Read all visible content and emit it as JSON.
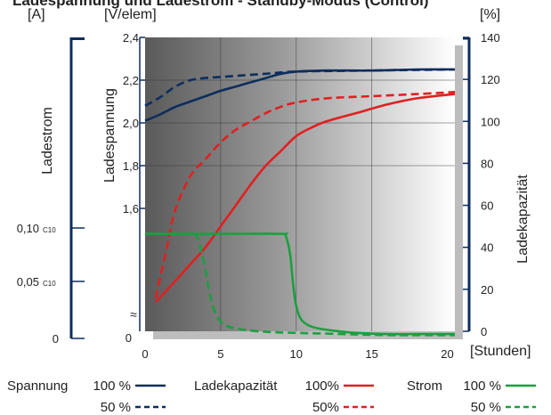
{
  "chart_data": {
    "type": "line",
    "title": "Ladespannung und Ladestrom - Standby-Modus (Control)",
    "xlabel": "[Stunden]",
    "x_ticks": [
      "0",
      "5",
      "10",
      "15",
      "20"
    ],
    "xlim": [
      0,
      20.5
    ],
    "left_axis_1": {
      "label": "Ladestrom",
      "unit": "[A]",
      "ticks": [
        {
          "value": 0,
          "text": "0",
          "sub": ""
        },
        {
          "value": 0.05,
          "text": "0,05",
          "sub": "C10"
        },
        {
          "value": 0.1,
          "text": "0,10",
          "sub": "C10"
        }
      ]
    },
    "left_axis_2": {
      "label": "Ladespannung",
      "unit": "[V/elem]",
      "ticks": [
        "1,6",
        "1,8",
        "2,0",
        "2,2",
        "2,4"
      ],
      "zero_label": "0",
      "break_symbol": "≈",
      "ylim": [
        1.6,
        2.4
      ]
    },
    "right_axis": {
      "label": "Ladekapazität",
      "unit": "[%]",
      "ticks": [
        "0",
        "20",
        "40",
        "60",
        "80",
        "100",
        "120",
        "140"
      ],
      "ylim": [
        0,
        140
      ]
    },
    "grid": true,
    "series": [
      {
        "name": "Spannung 100 %",
        "axis": "voltage",
        "color": "#0d2d5e",
        "dash": false,
        "x": [
          0,
          1,
          2,
          3,
          4,
          5,
          6,
          7,
          8,
          9,
          10,
          12,
          15,
          18,
          20.5
        ],
        "y": [
          2.01,
          2.04,
          2.075,
          2.1,
          2.125,
          2.15,
          2.17,
          2.19,
          2.21,
          2.23,
          2.24,
          2.245,
          2.245,
          2.25,
          2.25
        ]
      },
      {
        "name": "Spannung 50 %",
        "axis": "voltage",
        "color": "#0d2d5e",
        "dash": true,
        "x": [
          0,
          1,
          2,
          3,
          4,
          5,
          6,
          8,
          10,
          15,
          20.5
        ],
        "y": [
          2.08,
          2.12,
          2.17,
          2.2,
          2.21,
          2.215,
          2.22,
          2.23,
          2.24,
          2.245,
          2.25
        ]
      },
      {
        "name": "Ladekapazität 100%",
        "axis": "capacity",
        "color": "#e02020",
        "dash": false,
        "x": [
          0.7,
          2,
          3,
          4,
          5,
          6,
          7,
          8,
          9,
          10,
          11,
          12,
          14,
          16,
          18,
          20.5
        ],
        "y": [
          14,
          24,
          32,
          40,
          50,
          60,
          70,
          79,
          86,
          93,
          97,
          100,
          104,
          108,
          111,
          113
        ]
      },
      {
        "name": "Ladekapazität 50%",
        "axis": "capacity",
        "color": "#e02020",
        "dash": true,
        "x": [
          0.7,
          1.5,
          2,
          3,
          4,
          5,
          6,
          7,
          8,
          9,
          10,
          12,
          15,
          18,
          20.5
        ],
        "y": [
          16,
          42,
          58,
          74,
          82,
          90,
          96,
          100,
          104,
          107,
          109,
          111,
          112,
          113,
          114
        ]
      },
      {
        "name": "Strom 100 %",
        "axis": "current",
        "color": "#1aa040",
        "dash": false,
        "x": [
          0,
          5,
          9,
          9.3,
          9.6,
          9.8,
          10,
          10.3,
          10.8,
          11.5,
          12.5,
          14,
          16,
          18,
          20.5
        ],
        "y": [
          0.102,
          0.102,
          0.102,
          0.1,
          0.08,
          0.05,
          0.03,
          0.018,
          0.012,
          0.009,
          0.007,
          0.005,
          0.004,
          0.004,
          0.004
        ]
      },
      {
        "name": "Strom 50 %",
        "axis": "current",
        "color": "#1aa040",
        "dash": true,
        "x": [
          0,
          3,
          3.4,
          3.7,
          4,
          4.3,
          4.7,
          5.3,
          6.5,
          8,
          10,
          13,
          16,
          20.5
        ],
        "y": [
          0.102,
          0.102,
          0.1,
          0.085,
          0.065,
          0.04,
          0.022,
          0.012,
          0.008,
          0.006,
          0.005,
          0.004,
          0.003,
          0.003
        ]
      }
    ],
    "legend": {
      "placement": "bottom",
      "groups": [
        {
          "title": "Spannung",
          "color": "#0d2d5e",
          "items": [
            "100 %",
            "50 %"
          ]
        },
        {
          "title": "Ladekapazität",
          "color": "#e02020",
          "items": [
            "100%",
            "50%"
          ]
        },
        {
          "title": "Strom",
          "color": "#1aa040",
          "items": [
            "100 %",
            "50 %"
          ]
        }
      ]
    },
    "colors": {
      "axis": "#0d2d5e",
      "shadow": "#bdbdbd"
    }
  }
}
